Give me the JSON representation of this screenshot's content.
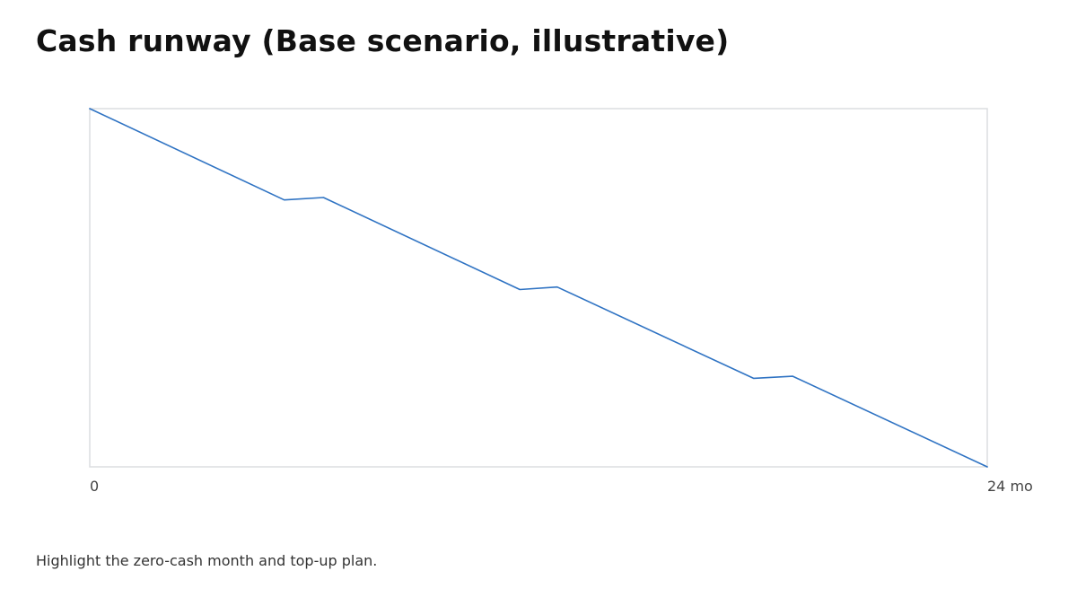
{
  "title": "Cash runway (Base scenario, illustrative)",
  "note": "Highlight the zero-cash month and top-up plan.",
  "colors": {
    "line": "#2f73c3",
    "frame": "#dcdde0"
  },
  "chart_data": {
    "type": "line",
    "title": "Cash runway (Base scenario, illustrative)",
    "xlabel": "",
    "ylabel": "",
    "x_ticks": [
      {
        "value": 0,
        "label": "0"
      },
      {
        "value": 24,
        "label": "24 mo"
      }
    ],
    "xlim": [
      0,
      24
    ],
    "ylim": [
      0,
      100
    ],
    "grid": false,
    "legend": "none",
    "series": [
      {
        "x": [
          0,
          5.2,
          6.25,
          11.5,
          12.5,
          17.75,
          18.8,
          24
        ],
        "y": [
          100,
          74.5,
          75.2,
          49.5,
          50.2,
          24.7,
          25.3,
          0
        ]
      }
    ]
  }
}
